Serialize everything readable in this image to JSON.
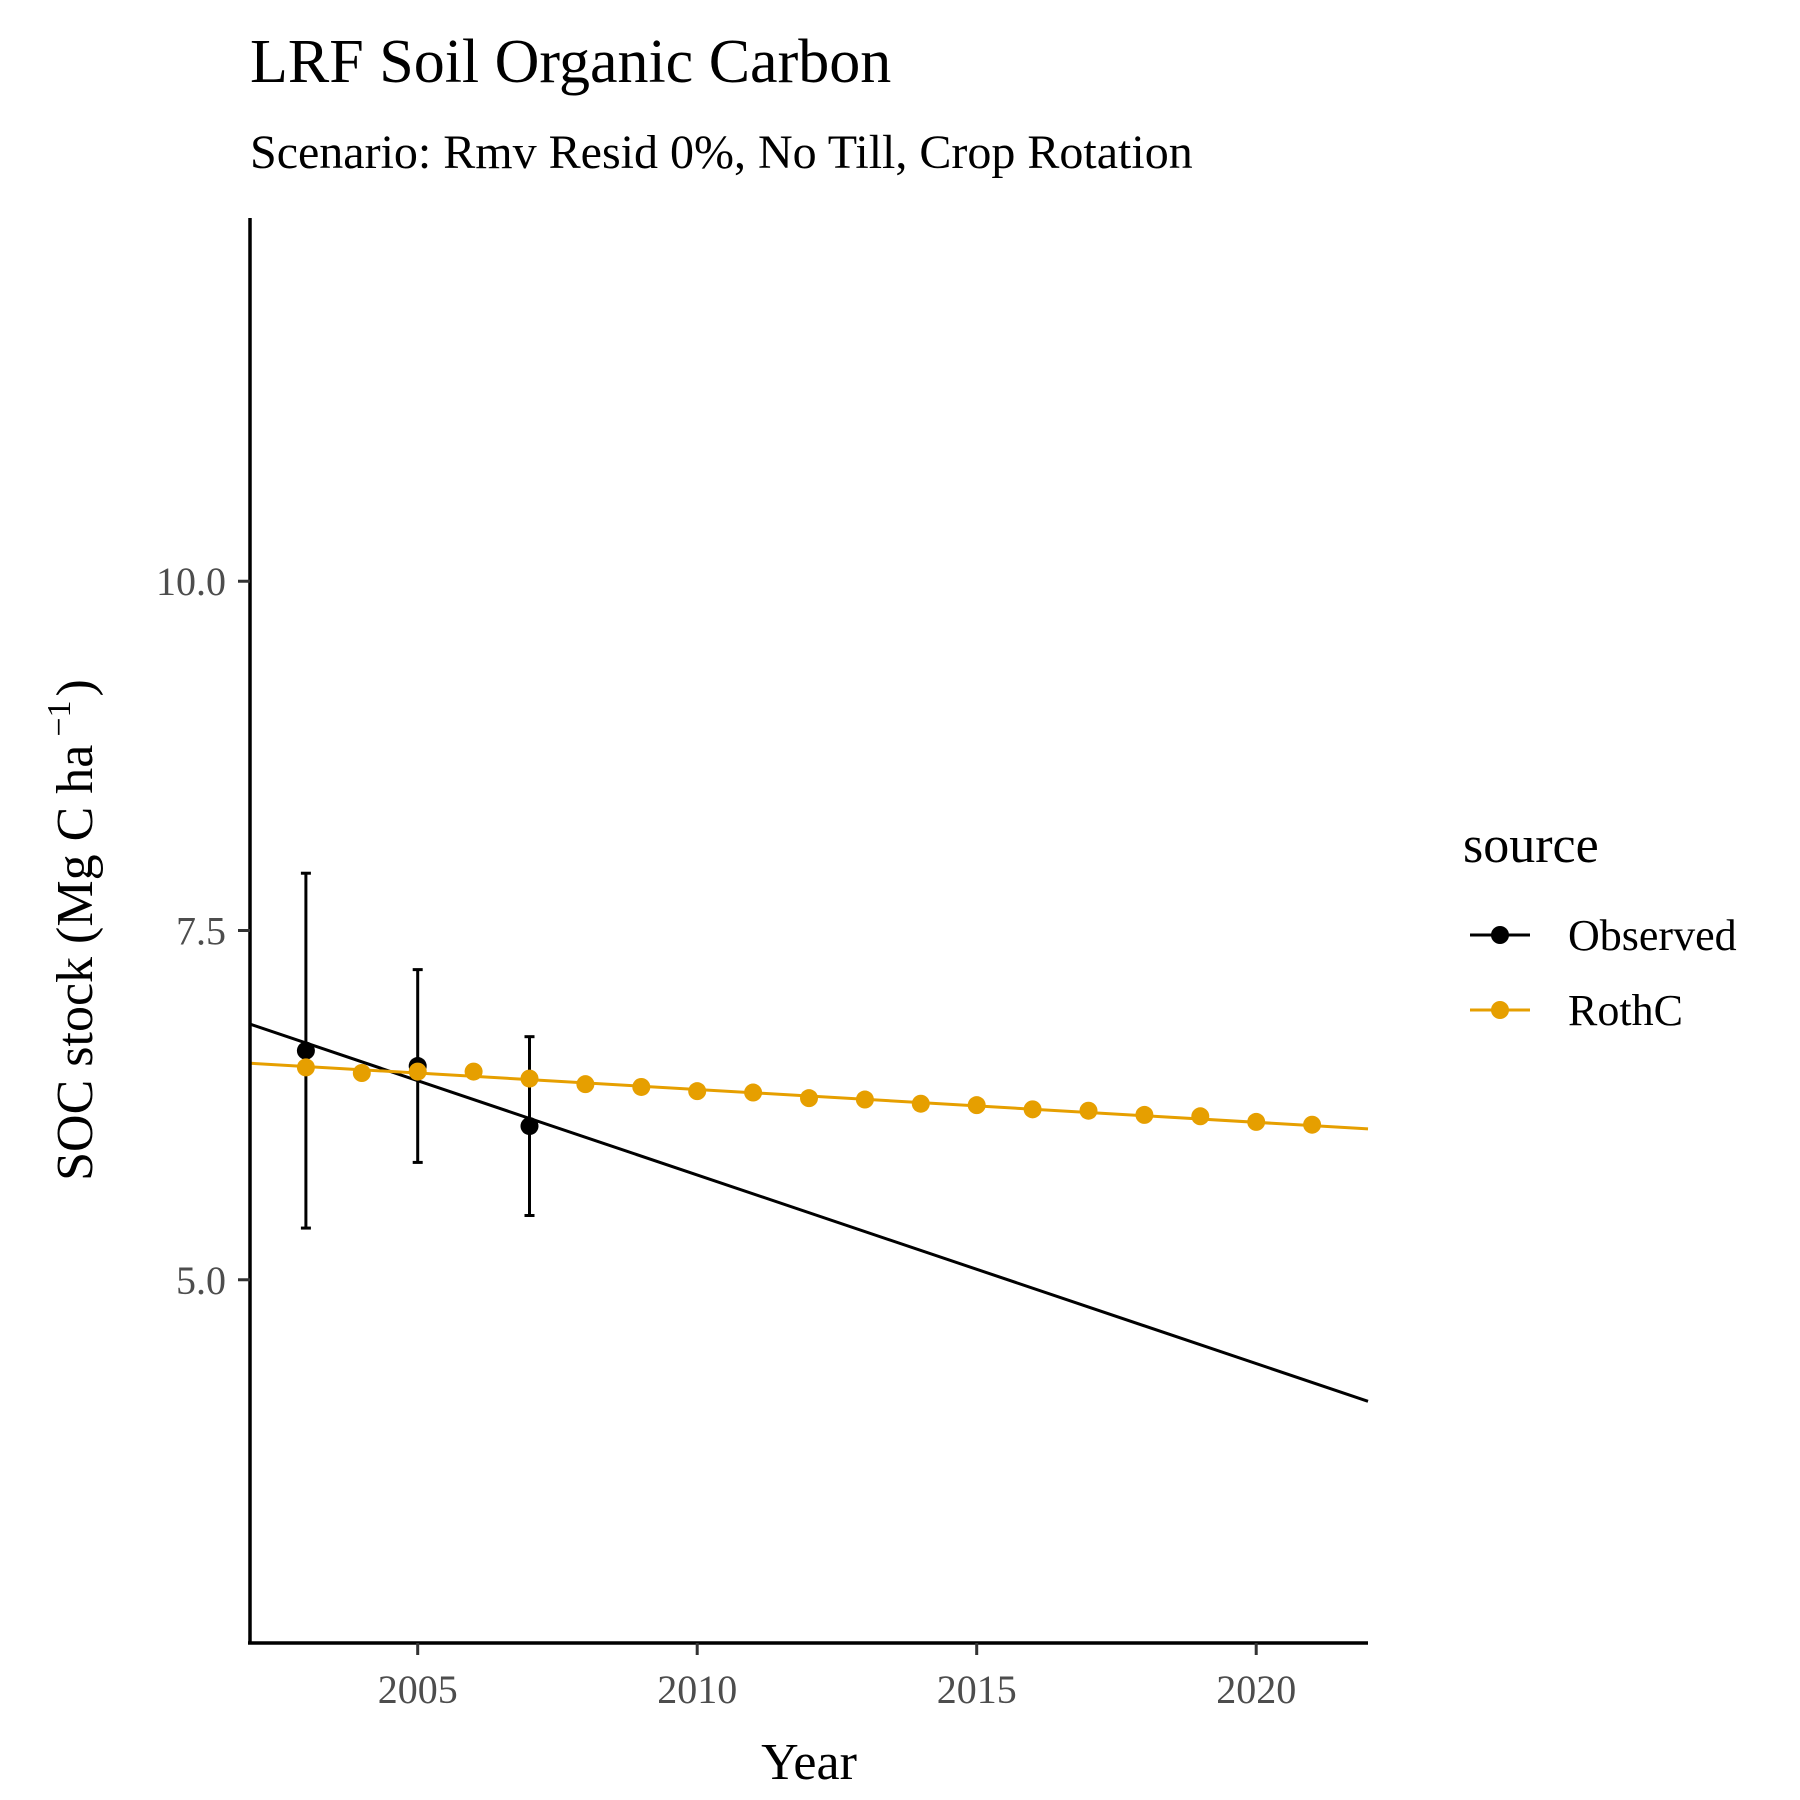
{
  "chart_data": {
    "type": "line",
    "title": "LRF Soil Organic Carbon",
    "subtitle": "Scenario: Rmv Resid 0%, No Till, Crop Rotation",
    "xlabel": "Year",
    "ylabel": "SOC stock (Mg C ha",
    "ylabel_superscript": "−1",
    "ylabel_close": ")",
    "xlim": [
      2002,
      2022
    ],
    "ylim": [
      2.4,
      12.6
    ],
    "x_ticks": [
      2005,
      2010,
      2015,
      2020
    ],
    "x_tick_labels": [
      "2005",
      "2010",
      "2015",
      "2020"
    ],
    "y_ticks": [
      5.0,
      7.5,
      10.0
    ],
    "y_tick_labels": [
      "5.0",
      "7.5",
      "10.0"
    ],
    "grid": false,
    "legend": {
      "title": "source",
      "position": "right"
    },
    "series": [
      {
        "name": "Observed",
        "color": "#000000",
        "points": [
          {
            "x": 2003,
            "y": 6.64,
            "err_low": 5.37,
            "err_high": 7.91
          },
          {
            "x": 2005,
            "y": 6.53,
            "err_low": 5.84,
            "err_high": 7.22
          },
          {
            "x": 2007,
            "y": 6.1,
            "err_low": 5.46,
            "err_high": 6.74
          }
        ],
        "trend": {
          "x": [
            2002,
            2022
          ],
          "y": [
            6.83,
            4.13
          ]
        }
      },
      {
        "name": "RothC",
        "color": "#E69F00",
        "points": [
          {
            "x": 2003,
            "y": 6.52
          },
          {
            "x": 2004,
            "y": 6.48
          },
          {
            "x": 2005,
            "y": 6.49
          },
          {
            "x": 2006,
            "y": 6.49
          },
          {
            "x": 2007,
            "y": 6.44
          },
          {
            "x": 2008,
            "y": 6.4
          },
          {
            "x": 2009,
            "y": 6.38
          },
          {
            "x": 2010,
            "y": 6.35
          },
          {
            "x": 2011,
            "y": 6.34
          },
          {
            "x": 2012,
            "y": 6.3
          },
          {
            "x": 2013,
            "y": 6.29
          },
          {
            "x": 2014,
            "y": 6.26
          },
          {
            "x": 2015,
            "y": 6.25
          },
          {
            "x": 2016,
            "y": 6.22
          },
          {
            "x": 2017,
            "y": 6.21
          },
          {
            "x": 2018,
            "y": 6.18
          },
          {
            "x": 2019,
            "y": 6.17
          },
          {
            "x": 2020,
            "y": 6.13
          },
          {
            "x": 2021,
            "y": 6.11
          }
        ],
        "trend": {
          "x": [
            2002,
            2022
          ],
          "y": [
            6.55,
            6.08
          ]
        }
      }
    ]
  }
}
